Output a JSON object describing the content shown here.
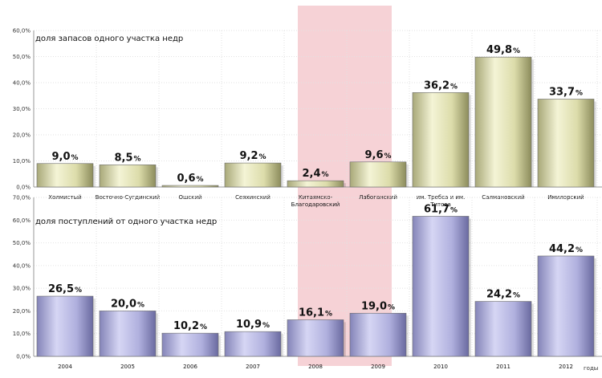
{
  "highlight_color": "#f6d2d6",
  "chart_data": [
    {
      "type": "bar",
      "title": "доля запасов одного участка недр",
      "categories": [
        "Холмистый",
        "Восточно-Сугдинский",
        "Ошский",
        "Сеяхинский",
        "Китаямско-Благодаровский",
        "Лабоганский",
        "им. Требса и им. Титова",
        "Салмановский",
        "Имилорский"
      ],
      "category_lines": [
        [
          "Холмистый"
        ],
        [
          "Восточно-Сугдинский"
        ],
        [
          "Ошский"
        ],
        [
          "Сеяхинский"
        ],
        [
          "Китаямско-",
          "Благодаровский"
        ],
        [
          "Лабоганский"
        ],
        [
          "им. Требса и им.",
          "Титова"
        ],
        [
          "Салмановский"
        ],
        [
          "Имилорский"
        ]
      ],
      "values": [
        9.0,
        8.5,
        0.6,
        9.2,
        2.4,
        9.6,
        36.2,
        49.8,
        33.7
      ],
      "value_labels": [
        "9,0",
        "8,5",
        "0,6",
        "9,2",
        "2,4",
        "9,6",
        "36,2",
        "49,8",
        "33,7"
      ],
      "unit": "%",
      "yticks": [
        "0,0%",
        "10,0%",
        "20,0%",
        "30,0%",
        "40,0%",
        "50,0%",
        "60,0%"
      ],
      "ylim": [
        0,
        60
      ],
      "grid": true,
      "highlighted_index": 4,
      "bar_color": "#e6e6b4"
    },
    {
      "type": "bar",
      "title": "доля поступлений от одного участка недр",
      "categories": [
        "2004",
        "2005",
        "2006",
        "2007",
        "2008",
        "2009",
        "2010",
        "2011",
        "2012"
      ],
      "values": [
        26.5,
        20.0,
        10.2,
        10.9,
        16.1,
        19.0,
        61.7,
        24.2,
        44.2
      ],
      "value_labels": [
        "26,5",
        "20,0",
        "10,2",
        "10,9",
        "16,1",
        "19,0",
        "61,7",
        "24,2",
        "44,2"
      ],
      "unit": "%",
      "yticks": [
        "0,0%",
        "10,0%",
        "20,0%",
        "30,0%",
        "40,0%",
        "50,0%",
        "60,0%",
        "70,0%"
      ],
      "ylim": [
        0,
        70
      ],
      "xlabel": "годы",
      "grid": true,
      "highlighted_index": 4,
      "bar_color": "#b4b4e6"
    }
  ]
}
